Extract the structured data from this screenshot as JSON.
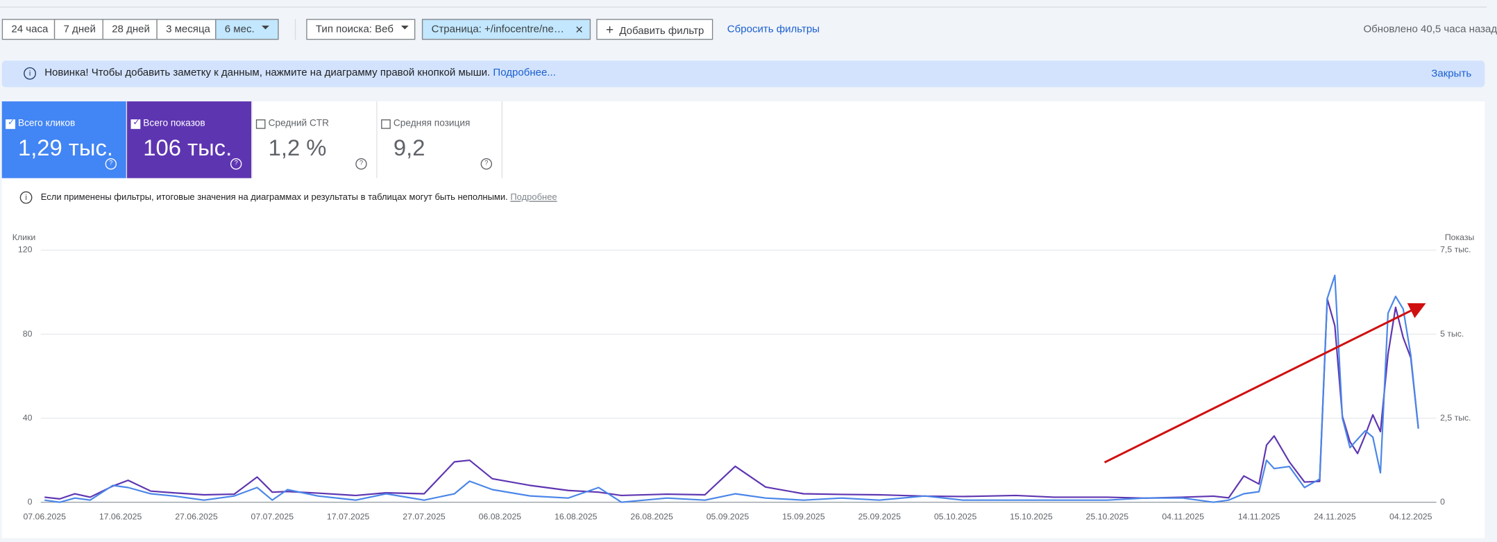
{
  "toolbar": {
    "ranges": [
      "24 часа",
      "7 дней",
      "28 дней",
      "3 месяца",
      "6 мес."
    ],
    "selected_range": 4,
    "search_type": "Тип поиска: Веб",
    "page_filter": "Страница: +/infocentre/ne…",
    "add_filter": "Добавить фильтр",
    "reset": "Сбросить фильтры",
    "updated": "Обновлено 40,5 часа назад"
  },
  "banner": {
    "text": "Новинка! Чтобы добавить заметку к данным, нажмите на диаграмму правой кнопкой мыши.",
    "link": "Подробнее...",
    "close": "Закрыть"
  },
  "metrics": [
    {
      "label": "Всего кликов",
      "value": "1,29 тыс.",
      "checked": true,
      "color": "#4285f4"
    },
    {
      "label": "Всего показов",
      "value": "106 тыс.",
      "checked": true,
      "color": "#5e35b1"
    },
    {
      "label": "Средний CTR",
      "value": "1,2 %",
      "checked": false
    },
    {
      "label": "Средняя позиция",
      "value": "9,2",
      "checked": false
    }
  ],
  "notice": {
    "text": "Если применены фильтры, итоговые значения на диаграммах и результаты в таблицах могут быть неполными.",
    "link": "Подробнее"
  },
  "chart_data": {
    "type": "line",
    "y_label": "Клики",
    "y2_label": "Показы",
    "x": [
      "07.06.2025",
      "09.06.2025",
      "11.06.2025",
      "13.06.2025",
      "16.06.2025",
      "18.06.2025",
      "21.06.2025",
      "24.06.2025",
      "28.06.2025",
      "02.07.2025",
      "05.07.2025",
      "07.07.2025",
      "09.07.2025",
      "13.07.2025",
      "18.07.2025",
      "22.07.2025",
      "27.07.2025",
      "31.07.2025",
      "02.08.2025",
      "05.08.2025",
      "10.08.2025",
      "15.08.2025",
      "19.08.2025",
      "22.08.2025",
      "28.08.2025",
      "02.09.2025",
      "06.09.2025",
      "10.09.2025",
      "15.09.2025",
      "20.09.2025",
      "25.09.2025",
      "01.10.2025",
      "06.10.2025",
      "13.10.2025",
      "18.10.2025",
      "25.10.2025",
      "30.10.2025",
      "04.11.2025",
      "08.11.2025",
      "10.11.2025",
      "12.11.2025",
      "14.11.2025",
      "15.11.2025",
      "16.11.2025",
      "18.11.2025",
      "20.11.2025",
      "22.11.2025",
      "23.11.2025",
      "24.11.2025",
      "25.11.2025",
      "26.11.2025",
      "27.11.2025",
      "28.11.2025",
      "29.11.2025",
      "30.11.2025",
      "01.12.2025",
      "02.12.2025",
      "03.12.2025",
      "04.12.2025",
      "05.12.2025"
    ],
    "series": [
      {
        "color": "#4a86e8",
        "axis": "y",
        "values": [
          1,
          0,
          2,
          1,
          8,
          7,
          4,
          3,
          1,
          3,
          7,
          1,
          6,
          3,
          1,
          4,
          1,
          4,
          10,
          6,
          3,
          2,
          7,
          0,
          2,
          1,
          4,
          2,
          1,
          2,
          1,
          3,
          1,
          1,
          1,
          1,
          2,
          2,
          0,
          1,
          4,
          5,
          20,
          16,
          17,
          7,
          11,
          97,
          108,
          40,
          26,
          30,
          34,
          31,
          14,
          90,
          98,
          92,
          70,
          35
        ]
      },
      {
        "color": "#5e35b1",
        "axis": "y2",
        "values": [
          150,
          100,
          250,
          150,
          480,
          650,
          330,
          280,
          220,
          240,
          750,
          300,
          320,
          270,
          200,
          280,
          250,
          1200,
          1250,
          700,
          500,
          350,
          300,
          200,
          240,
          220,
          1070,
          450,
          250,
          230,
          220,
          180,
          170,
          200,
          150,
          150,
          120,
          150,
          180,
          130,
          780,
          540,
          1700,
          1970,
          1200,
          600,
          620,
          6050,
          5250,
          2550,
          1800,
          1450,
          2000,
          2600,
          2100,
          4400,
          5800,
          4900,
          4300,
          2200
        ]
      }
    ],
    "xlim": [
      "07.06.2025",
      "07.12.2025"
    ],
    "xticks": [
      "07.06.2025",
      "17.06.2025",
      "27.06.2025",
      "07.07.2025",
      "17.07.2025",
      "27.07.2025",
      "06.08.2025",
      "16.08.2025",
      "26.08.2025",
      "05.09.2025",
      "15.09.2025",
      "25.09.2025",
      "05.10.2025",
      "15.10.2025",
      "25.10.2025",
      "04.11.2025",
      "14.11.2025",
      "24.11.2025",
      "04.12.2025"
    ],
    "ylim": [
      0,
      120
    ],
    "yticks": [
      0,
      40,
      80,
      120
    ],
    "y2lim": [
      0,
      7500
    ],
    "y2ticks": [
      0,
      {
        "value": 2500,
        "label": "2,5 тыс."
      },
      {
        "value": 5000,
        "label": "5 тыс."
      },
      {
        "value": 7500,
        "label": "7,5 тыс."
      }
    ],
    "grid": true
  }
}
